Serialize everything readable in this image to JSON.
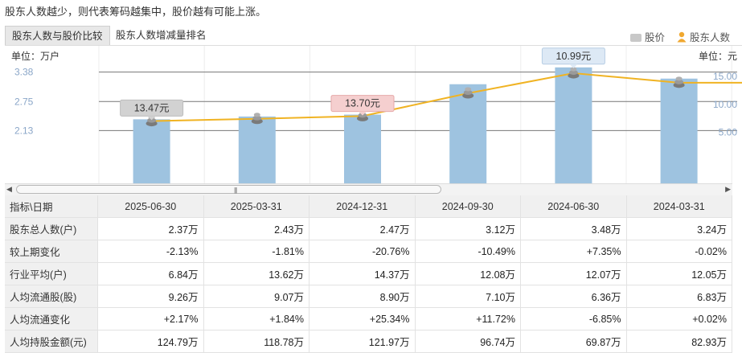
{
  "headline": "股东人数越少，则代表筹码越集中，股价越有可能上涨。",
  "tabs": [
    {
      "label": "股东人数与股价比较",
      "active": true
    },
    {
      "label": "股东人数增减量排名",
      "active": false
    }
  ],
  "legend": {
    "price": "股价",
    "holders": "股东人数"
  },
  "chart_data": {
    "type": "bar+line",
    "categories": [
      "2025-06-30",
      "2025-03-31",
      "2024-12-31",
      "2024-09-30",
      "2024-06-30",
      "2024-03-31"
    ],
    "left_axis": {
      "unit_label": "单位：万户",
      "ticks": [
        "3.38",
        "2.75",
        "2.13"
      ],
      "range": [
        1.5,
        3.7
      ]
    },
    "right_axis": {
      "unit_label": "单位：元",
      "ticks": [
        "15.00",
        "10.00",
        "5.00"
      ],
      "range": [
        0,
        18.5
      ]
    },
    "bars": {
      "name": "股东人数",
      "values": [
        2.37,
        2.43,
        2.47,
        3.12,
        3.48,
        3.24
      ],
      "color": "#9ec3e0"
    },
    "line": {
      "name": "股价",
      "values": [
        7.0,
        7.4,
        7.9,
        12.0,
        15.6,
        13.9
      ],
      "extra_right": 13.9,
      "color": "#f0b323"
    },
    "price_labels": [
      {
        "index": 0,
        "text": "13.47元",
        "style": "gray"
      },
      {
        "index": 2,
        "text": "13.70元",
        "style": "red"
      },
      {
        "index": 4,
        "text": "10.99元",
        "style": "blue"
      }
    ],
    "grid": true
  },
  "table": {
    "header": [
      "指标\\日期",
      "2025-06-30",
      "2025-03-31",
      "2024-12-31",
      "2024-09-30",
      "2024-06-30",
      "2024-03-31"
    ],
    "rows": [
      {
        "label": "股东总人数(户)",
        "cells": [
          "2.37万",
          "2.43万",
          "2.47万",
          "3.12万",
          "3.48万",
          "3.24万"
        ],
        "tone": [
          "",
          "",
          "",
          "",
          "",
          ""
        ]
      },
      {
        "label": "较上期变化",
        "cells": [
          "-2.13%",
          "-1.81%",
          "-20.76%",
          "-10.49%",
          "+7.35%",
          "-0.02%"
        ],
        "tone": [
          "neg",
          "neg",
          "neg",
          "neg",
          "pos",
          "neg"
        ]
      },
      {
        "label": "行业平均(户)",
        "cells": [
          "6.84万",
          "13.62万",
          "14.37万",
          "12.08万",
          "12.07万",
          "12.05万"
        ],
        "tone": [
          "",
          "",
          "",
          "",
          "",
          ""
        ]
      },
      {
        "label": "人均流通股(股)",
        "cells": [
          "9.26万",
          "9.07万",
          "8.90万",
          "7.10万",
          "6.36万",
          "6.83万"
        ],
        "tone": [
          "",
          "",
          "",
          "",
          "",
          ""
        ]
      },
      {
        "label": "人均流通变化",
        "cells": [
          "+2.17%",
          "+1.84%",
          "+25.34%",
          "+11.72%",
          "-6.85%",
          "+0.02%"
        ],
        "tone": [
          "pos",
          "pos",
          "pos",
          "pos",
          "neg",
          "pos"
        ]
      },
      {
        "label": "人均持股金额(元)",
        "cells": [
          "124.79万",
          "118.78万",
          "121.97万",
          "96.74万",
          "69.87万",
          "82.93万"
        ],
        "tone": [
          "",
          "",
          "",
          "",
          "",
          ""
        ]
      }
    ]
  },
  "colors": {
    "bar": "#9ec3e0",
    "line": "#f0b323",
    "positive": "#e02020",
    "negative": "#1e9a1e"
  }
}
